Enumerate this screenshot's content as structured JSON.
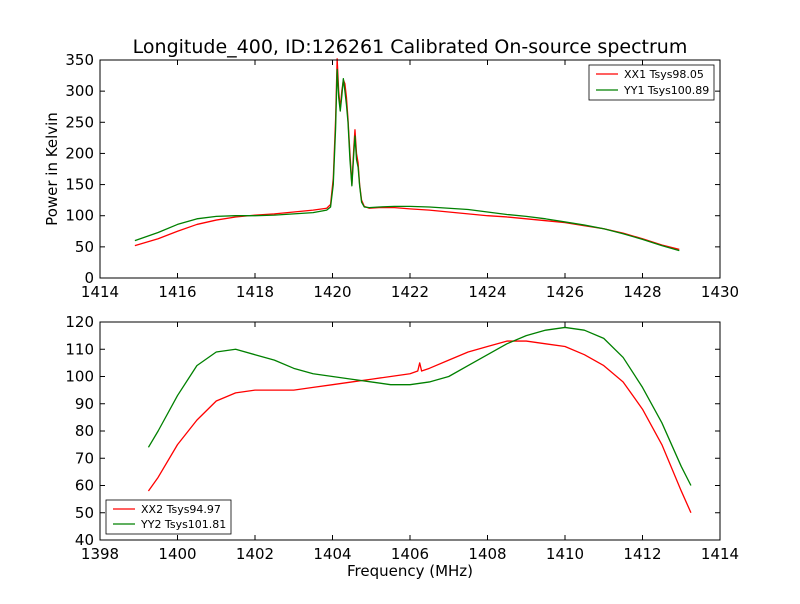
{
  "chart_data": [
    {
      "type": "line",
      "title": "Longitude_400, ID:126261 Calibrated On-source spectrum",
      "xlabel": "",
      "ylabel": "Power in Kelvin",
      "xlim": [
        1414,
        1430
      ],
      "ylim": [
        0,
        350
      ],
      "xticks": [
        "1414",
        "1416",
        "1418",
        "1420",
        "1422",
        "1424",
        "1426",
        "1428",
        "1430"
      ],
      "yticks": [
        "0",
        "50",
        "100",
        "150",
        "200",
        "250",
        "300",
        "350"
      ],
      "legend_position": "top-right",
      "grid": false,
      "series": [
        {
          "name": "XX1 Tsys98.05",
          "color": "#ff0000",
          "points": [
            [
              1414.9,
              52
            ],
            [
              1415.5,
              63
            ],
            [
              1416.0,
              75
            ],
            [
              1416.5,
              86
            ],
            [
              1417.0,
              93
            ],
            [
              1417.5,
              98
            ],
            [
              1418.0,
              101
            ],
            [
              1418.5,
              103
            ],
            [
              1419.0,
              106
            ],
            [
              1419.5,
              109
            ],
            [
              1419.85,
              112
            ],
            [
              1419.95,
              118
            ],
            [
              1420.02,
              160
            ],
            [
              1420.08,
              255
            ],
            [
              1420.12,
              352
            ],
            [
              1420.16,
              300
            ],
            [
              1420.2,
              272
            ],
            [
              1420.24,
              300
            ],
            [
              1420.28,
              318
            ],
            [
              1420.32,
              312
            ],
            [
              1420.36,
              290
            ],
            [
              1420.4,
              255
            ],
            [
              1420.45,
              200
            ],
            [
              1420.5,
              150
            ],
            [
              1420.55,
              210
            ],
            [
              1420.58,
              238
            ],
            [
              1420.62,
              200
            ],
            [
              1420.66,
              185
            ],
            [
              1420.7,
              150
            ],
            [
              1420.75,
              125
            ],
            [
              1420.82,
              115
            ],
            [
              1420.95,
              112
            ],
            [
              1421.2,
              113
            ],
            [
              1421.6,
              113
            ],
            [
              1422.0,
              111
            ],
            [
              1422.5,
              109
            ],
            [
              1423.0,
              106
            ],
            [
              1423.5,
              103
            ],
            [
              1424.0,
              100
            ],
            [
              1424.5,
              98
            ],
            [
              1425.0,
              95
            ],
            [
              1425.5,
              92
            ],
            [
              1426.0,
              89
            ],
            [
              1426.5,
              84
            ],
            [
              1427.0,
              79
            ],
            [
              1427.5,
              72
            ],
            [
              1428.0,
              63
            ],
            [
              1428.5,
              53
            ],
            [
              1428.95,
              46
            ]
          ]
        },
        {
          "name": "YY1 Tsys100.89",
          "color": "#008000",
          "points": [
            [
              1414.9,
              60
            ],
            [
              1415.5,
              73
            ],
            [
              1416.0,
              86
            ],
            [
              1416.5,
              95
            ],
            [
              1417.0,
              99
            ],
            [
              1417.5,
              100
            ],
            [
              1418.0,
              100
            ],
            [
              1418.5,
              101
            ],
            [
              1419.0,
              103
            ],
            [
              1419.5,
              105
            ],
            [
              1419.85,
              109
            ],
            [
              1419.95,
              114
            ],
            [
              1420.02,
              150
            ],
            [
              1420.08,
              240
            ],
            [
              1420.12,
              335
            ],
            [
              1420.16,
              290
            ],
            [
              1420.2,
              268
            ],
            [
              1420.24,
              292
            ],
            [
              1420.28,
              320
            ],
            [
              1420.32,
              300
            ],
            [
              1420.36,
              278
            ],
            [
              1420.4,
              250
            ],
            [
              1420.45,
              190
            ],
            [
              1420.5,
              148
            ],
            [
              1420.55,
              200
            ],
            [
              1420.58,
              228
            ],
            [
              1420.62,
              190
            ],
            [
              1420.66,
              178
            ],
            [
              1420.7,
              148
            ],
            [
              1420.75,
              122
            ],
            [
              1420.82,
              114
            ],
            [
              1420.95,
              113
            ],
            [
              1421.2,
              114
            ],
            [
              1421.6,
              115
            ],
            [
              1422.0,
              115
            ],
            [
              1422.5,
              114
            ],
            [
              1423.0,
              112
            ],
            [
              1423.5,
              110
            ],
            [
              1424.0,
              106
            ],
            [
              1424.5,
              102
            ],
            [
              1425.0,
              99
            ],
            [
              1425.5,
              95
            ],
            [
              1426.0,
              90
            ],
            [
              1426.5,
              85
            ],
            [
              1427.0,
              79
            ],
            [
              1427.5,
              71
            ],
            [
              1428.0,
              62
            ],
            [
              1428.5,
              52
            ],
            [
              1428.95,
              44
            ]
          ]
        }
      ]
    },
    {
      "type": "line",
      "title": "",
      "xlabel": "Frequency (MHz)",
      "ylabel": "",
      "xlim": [
        1398,
        1414
      ],
      "ylim": [
        40,
        120
      ],
      "xticks": [
        "1398",
        "1400",
        "1402",
        "1404",
        "1406",
        "1408",
        "1410",
        "1412",
        "1414"
      ],
      "yticks": [
        "40",
        "50",
        "60",
        "70",
        "80",
        "90",
        "100",
        "110",
        "120"
      ],
      "legend_position": "bottom-left",
      "grid": false,
      "series": [
        {
          "name": "XX2 Tsys94.97",
          "color": "#ff0000",
          "points": [
            [
              1399.25,
              58
            ],
            [
              1399.5,
              63
            ],
            [
              1400.0,
              75
            ],
            [
              1400.5,
              84
            ],
            [
              1401.0,
              91
            ],
            [
              1401.5,
              94
            ],
            [
              1402.0,
              95
            ],
            [
              1402.5,
              95
            ],
            [
              1403.0,
              95
            ],
            [
              1403.5,
              96
            ],
            [
              1404.0,
              97
            ],
            [
              1404.5,
              98
            ],
            [
              1405.0,
              99
            ],
            [
              1405.5,
              100
            ],
            [
              1406.0,
              101
            ],
            [
              1406.2,
              102
            ],
            [
              1406.25,
              105
            ],
            [
              1406.3,
              102
            ],
            [
              1406.5,
              103
            ],
            [
              1407.0,
              106
            ],
            [
              1407.5,
              109
            ],
            [
              1408.0,
              111
            ],
            [
              1408.5,
              113
            ],
            [
              1409.0,
              113
            ],
            [
              1409.5,
              112
            ],
            [
              1410.0,
              111
            ],
            [
              1410.5,
              108
            ],
            [
              1411.0,
              104
            ],
            [
              1411.5,
              98
            ],
            [
              1412.0,
              88
            ],
            [
              1412.5,
              75
            ],
            [
              1413.0,
              58
            ],
            [
              1413.25,
              50
            ]
          ]
        },
        {
          "name": "YY2 Tsys101.81",
          "color": "#008000",
          "points": [
            [
              1399.25,
              74
            ],
            [
              1399.5,
              80
            ],
            [
              1400.0,
              93
            ],
            [
              1400.5,
              104
            ],
            [
              1401.0,
              109
            ],
            [
              1401.5,
              110
            ],
            [
              1402.0,
              108
            ],
            [
              1402.5,
              106
            ],
            [
              1403.0,
              103
            ],
            [
              1403.5,
              101
            ],
            [
              1404.0,
              100
            ],
            [
              1404.5,
              99
            ],
            [
              1405.0,
              98
            ],
            [
              1405.5,
              97
            ],
            [
              1406.0,
              97
            ],
            [
              1406.5,
              98
            ],
            [
              1407.0,
              100
            ],
            [
              1407.5,
              104
            ],
            [
              1408.0,
              108
            ],
            [
              1408.5,
              112
            ],
            [
              1409.0,
              115
            ],
            [
              1409.5,
              117
            ],
            [
              1410.0,
              118
            ],
            [
              1410.5,
              117
            ],
            [
              1411.0,
              114
            ],
            [
              1411.5,
              107
            ],
            [
              1412.0,
              96
            ],
            [
              1412.5,
              83
            ],
            [
              1413.0,
              67
            ],
            [
              1413.25,
              60
            ]
          ]
        }
      ]
    }
  ]
}
